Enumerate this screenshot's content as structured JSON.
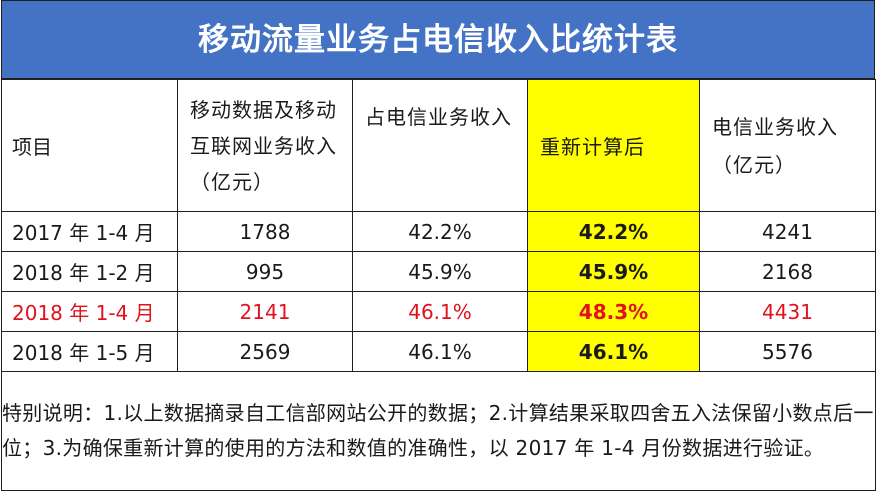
{
  "title": "移动流量业务占电信收入比统计表",
  "headers": {
    "item": "项目",
    "mobile_revenue": "移动数据及移动互联网业务收入（亿元）",
    "share": "占电信业务收入",
    "recalc": "重新计算后",
    "telecom_revenue": "电信业务收入（亿元）"
  },
  "rows": [
    {
      "period": "2017 年 1-4 月",
      "mobile_revenue": "1788",
      "share": "42.2%",
      "recalc": "42.2%",
      "telecom_revenue": "4241"
    },
    {
      "period": "2018 年 1-2 月",
      "mobile_revenue": "995",
      "share": "45.9%",
      "recalc": "45.9%",
      "telecom_revenue": "2168"
    },
    {
      "period": "2018 年 1-4 月",
      "mobile_revenue": "2141",
      "share": "46.1%",
      "recalc": "48.3%",
      "telecom_revenue": "4431"
    },
    {
      "period": "2018 年 1-5 月",
      "mobile_revenue": "2569",
      "share": "46.1%",
      "recalc": "46.1%",
      "telecom_revenue": "5576"
    }
  ],
  "note": "特别说明：1.以上数据摘录自工信部网站公开的数据；2.计算结果采取四舍五入法保留小数点后一位；3.为确保重新计算的使用的方法和数值的准确性，以 2017 年 1-4 月份数据进行验证。",
  "colors": {
    "title_bg": "#4472c4",
    "highlight": "#ffff00",
    "highlight_row_text": "#e0121d"
  }
}
